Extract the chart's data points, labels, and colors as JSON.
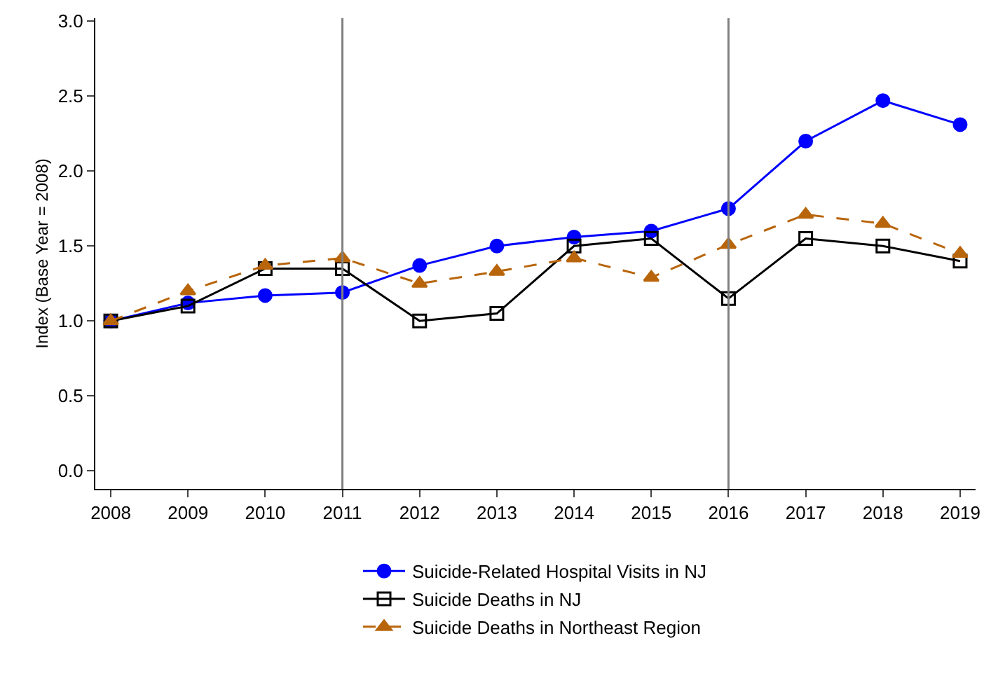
{
  "chart_data": {
    "type": "line",
    "ylabel": "Index (Base Year = 2008)",
    "x": [
      2008,
      2009,
      2010,
      2011,
      2012,
      2013,
      2014,
      2015,
      2016,
      2017,
      2018,
      2019
    ],
    "series": [
      {
        "name": "Suicide-Related Hospital Visits in NJ",
        "color": "#0000ff",
        "marker": "circle",
        "line_style": "solid",
        "values": [
          1.0,
          1.12,
          1.17,
          1.19,
          1.37,
          1.5,
          1.56,
          1.6,
          1.75,
          2.2,
          2.47,
          2.31
        ]
      },
      {
        "name": "Suicide Deaths in NJ",
        "color": "#000000",
        "marker": "square",
        "line_style": "solid",
        "values": [
          1.0,
          1.1,
          1.35,
          1.35,
          1.0,
          1.05,
          1.5,
          1.55,
          1.15,
          1.55,
          1.5,
          1.4
        ]
      },
      {
        "name": "Suicide Deaths in Northeast Region",
        "color": "#b8650b",
        "marker": "triangle",
        "line_style": "dashed",
        "values": [
          1.0,
          1.2,
          1.37,
          1.42,
          1.25,
          1.33,
          1.42,
          1.29,
          1.51,
          1.71,
          1.65,
          1.45
        ]
      }
    ],
    "xlim": [
      2007.8,
      2019.2
    ],
    "xticks": [
      2008,
      2009,
      2010,
      2011,
      2012,
      2013,
      2014,
      2015,
      2016,
      2017,
      2018,
      2019
    ],
    "ylim": [
      -0.12,
      3.02
    ],
    "yticks": [
      {
        "value": 0,
        "label": "0.0"
      },
      {
        "value": 0.5,
        "label": "0.5"
      },
      {
        "value": 1,
        "label": "1.0"
      },
      {
        "value": 1.5,
        "label": "1.5"
      },
      {
        "value": 2,
        "label": "2.0"
      },
      {
        "value": 2.5,
        "label": "2.5"
      },
      {
        "value": 3,
        "label": "3.0"
      }
    ],
    "ref_lines": [
      {
        "axis": "x",
        "value": 2011,
        "color": "#808080"
      },
      {
        "axis": "x",
        "value": 2016,
        "color": "#808080"
      }
    ],
    "grid": false,
    "legend": "bottom"
  }
}
